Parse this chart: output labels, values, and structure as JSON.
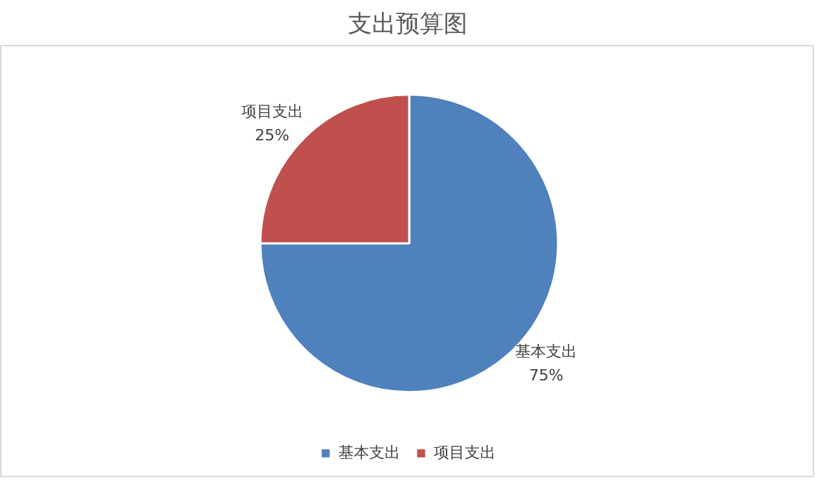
{
  "chart_data": {
    "type": "pie",
    "title": "支出预算图",
    "categories": [
      "基本支出",
      "项目支出"
    ],
    "values": [
      75,
      25
    ],
    "colors": [
      "#4f81bd",
      "#c0504d"
    ],
    "value_labels": [
      "75%",
      "25%"
    ],
    "legend": "bottom"
  }
}
